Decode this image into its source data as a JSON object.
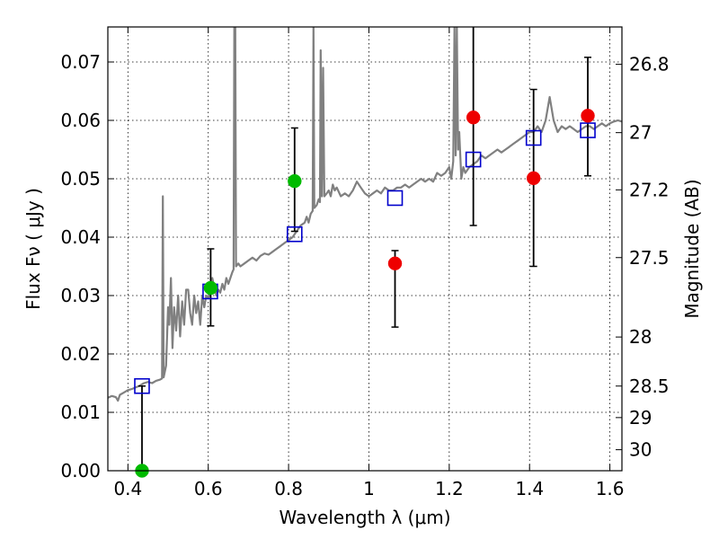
{
  "chart_data": {
    "type": "scatter",
    "title": "",
    "xlabel": "Wavelength  λ (μm)",
    "ylabel": "Flux  Fν  ( μJy )",
    "ylabel_right": "Magnitude (AB)",
    "xlim": [
      0.35,
      1.63
    ],
    "ylim": [
      0.0,
      0.076
    ],
    "grid": true,
    "x_ticks": [
      0.4,
      0.6,
      0.8,
      1.0,
      1.2,
      1.4,
      1.6
    ],
    "x_tick_labels": [
      "0.4",
      "0.6",
      "0.8",
      "1",
      "1.2",
      "1.4",
      "1.6"
    ],
    "y_ticks": [
      0.0,
      0.01,
      0.02,
      0.03,
      0.04,
      0.05,
      0.06,
      0.07
    ],
    "y_tick_labels": [
      "0.00",
      "0.01",
      "0.02",
      "0.03",
      "0.04",
      "0.05",
      "0.06",
      "0.07"
    ],
    "right_ticks": [
      {
        "label": "26.8",
        "flux": 0.0696
      },
      {
        "label": "27",
        "flux": 0.0579
      },
      {
        "label": "27.2",
        "flux": 0.0481
      },
      {
        "label": "27.5",
        "flux": 0.0365
      },
      {
        "label": "28",
        "flux": 0.0229
      },
      {
        "label": "28.5",
        "flux": 0.0145
      },
      {
        "label": "29",
        "flux": 0.0091
      },
      {
        "label": "30",
        "flux": 0.0036
      }
    ],
    "series": [
      {
        "type": "line",
        "color": "#808080",
        "points": [
          [
            0.35,
            0.0125
          ],
          [
            0.36,
            0.0128
          ],
          [
            0.37,
            0.0126
          ],
          [
            0.375,
            0.012
          ],
          [
            0.38,
            0.013
          ],
          [
            0.39,
            0.0134
          ],
          [
            0.4,
            0.0138
          ],
          [
            0.41,
            0.014
          ],
          [
            0.42,
            0.0143
          ],
          [
            0.43,
            0.0146
          ],
          [
            0.44,
            0.015
          ],
          [
            0.45,
            0.0152
          ],
          [
            0.46,
            0.015
          ],
          [
            0.47,
            0.0154
          ],
          [
            0.48,
            0.0156
          ],
          [
            0.485,
            0.0158
          ],
          [
            0.487,
            0.047
          ],
          [
            0.489,
            0.016
          ],
          [
            0.495,
            0.018
          ],
          [
            0.5,
            0.028
          ],
          [
            0.503,
            0.025
          ],
          [
            0.507,
            0.033
          ],
          [
            0.511,
            0.021
          ],
          [
            0.515,
            0.028
          ],
          [
            0.52,
            0.024
          ],
          [
            0.525,
            0.03
          ],
          [
            0.53,
            0.023
          ],
          [
            0.535,
            0.029
          ],
          [
            0.54,
            0.025
          ],
          [
            0.545,
            0.031
          ],
          [
            0.55,
            0.031
          ],
          [
            0.555,
            0.027
          ],
          [
            0.56,
            0.025
          ],
          [
            0.565,
            0.03
          ],
          [
            0.57,
            0.027
          ],
          [
            0.575,
            0.029
          ],
          [
            0.58,
            0.025
          ],
          [
            0.585,
            0.03
          ],
          [
            0.59,
            0.028
          ],
          [
            0.595,
            0.03
          ],
          [
            0.6,
            0.0295
          ],
          [
            0.605,
            0.031
          ],
          [
            0.61,
            0.033
          ],
          [
            0.615,
            0.0315
          ],
          [
            0.62,
            0.03
          ],
          [
            0.625,
            0.031
          ],
          [
            0.63,
            0.0305
          ],
          [
            0.635,
            0.032
          ],
          [
            0.64,
            0.031
          ],
          [
            0.645,
            0.033
          ],
          [
            0.65,
            0.032
          ],
          [
            0.655,
            0.033
          ],
          [
            0.66,
            0.034
          ],
          [
            0.663,
            0.0345
          ],
          [
            0.665,
            0.08
          ],
          [
            0.667,
            0.08
          ],
          [
            0.669,
            0.035
          ],
          [
            0.675,
            0.0355
          ],
          [
            0.68,
            0.035
          ],
          [
            0.69,
            0.0355
          ],
          [
            0.7,
            0.036
          ],
          [
            0.71,
            0.0365
          ],
          [
            0.72,
            0.036
          ],
          [
            0.73,
            0.0368
          ],
          [
            0.74,
            0.0372
          ],
          [
            0.75,
            0.037
          ],
          [
            0.76,
            0.0375
          ],
          [
            0.77,
            0.038
          ],
          [
            0.78,
            0.0385
          ],
          [
            0.79,
            0.039
          ],
          [
            0.8,
            0.0395
          ],
          [
            0.81,
            0.04
          ],
          [
            0.82,
            0.041
          ],
          [
            0.83,
            0.042
          ],
          [
            0.84,
            0.0425
          ],
          [
            0.845,
            0.0435
          ],
          [
            0.85,
            0.0425
          ],
          [
            0.855,
            0.044
          ],
          [
            0.86,
            0.0445
          ],
          [
            0.862,
            0.076
          ],
          [
            0.864,
            0.045
          ],
          [
            0.87,
            0.0455
          ],
          [
            0.875,
            0.0465
          ],
          [
            0.878,
            0.046
          ],
          [
            0.88,
            0.072
          ],
          [
            0.883,
            0.047
          ],
          [
            0.886,
            0.069
          ],
          [
            0.889,
            0.047
          ],
          [
            0.895,
            0.0475
          ],
          [
            0.9,
            0.048
          ],
          [
            0.905,
            0.047
          ],
          [
            0.91,
            0.049
          ],
          [
            0.915,
            0.048
          ],
          [
            0.92,
            0.0485
          ],
          [
            0.93,
            0.047
          ],
          [
            0.94,
            0.0475
          ],
          [
            0.95,
            0.047
          ],
          [
            0.96,
            0.048
          ],
          [
            0.97,
            0.0495
          ],
          [
            0.98,
            0.0485
          ],
          [
            0.99,
            0.0475
          ],
          [
            1.0,
            0.047
          ],
          [
            1.01,
            0.0475
          ],
          [
            1.02,
            0.048
          ],
          [
            1.03,
            0.0475
          ],
          [
            1.04,
            0.0485
          ],
          [
            1.05,
            0.048
          ],
          [
            1.06,
            0.048
          ],
          [
            1.07,
            0.0485
          ],
          [
            1.08,
            0.0485
          ],
          [
            1.09,
            0.049
          ],
          [
            1.1,
            0.0485
          ],
          [
            1.11,
            0.049
          ],
          [
            1.12,
            0.0495
          ],
          [
            1.13,
            0.05
          ],
          [
            1.14,
            0.0495
          ],
          [
            1.15,
            0.05
          ],
          [
            1.16,
            0.0495
          ],
          [
            1.17,
            0.051
          ],
          [
            1.18,
            0.0505
          ],
          [
            1.19,
            0.051
          ],
          [
            1.2,
            0.052
          ],
          [
            1.205,
            0.05
          ],
          [
            1.21,
            0.053
          ],
          [
            1.213,
            0.076
          ],
          [
            1.216,
            0.054
          ],
          [
            1.219,
            0.076
          ],
          [
            1.222,
            0.055
          ],
          [
            1.225,
            0.058
          ],
          [
            1.23,
            0.05
          ],
          [
            1.235,
            0.052
          ],
          [
            1.24,
            0.051
          ],
          [
            1.25,
            0.052
          ],
          [
            1.26,
            0.0525
          ],
          [
            1.27,
            0.053
          ],
          [
            1.28,
            0.054
          ],
          [
            1.29,
            0.0535
          ],
          [
            1.3,
            0.054
          ],
          [
            1.31,
            0.0545
          ],
          [
            1.32,
            0.055
          ],
          [
            1.33,
            0.0545
          ],
          [
            1.34,
            0.055
          ],
          [
            1.35,
            0.0555
          ],
          [
            1.36,
            0.056
          ],
          [
            1.37,
            0.0565
          ],
          [
            1.38,
            0.057
          ],
          [
            1.39,
            0.0575
          ],
          [
            1.4,
            0.058
          ],
          [
            1.41,
            0.058
          ],
          [
            1.42,
            0.059
          ],
          [
            1.43,
            0.058
          ],
          [
            1.44,
            0.06
          ],
          [
            1.45,
            0.064
          ],
          [
            1.46,
            0.06
          ],
          [
            1.47,
            0.058
          ],
          [
            1.48,
            0.059
          ],
          [
            1.49,
            0.0585
          ],
          [
            1.5,
            0.059
          ],
          [
            1.51,
            0.0585
          ],
          [
            1.52,
            0.058
          ],
          [
            1.53,
            0.0585
          ],
          [
            1.54,
            0.059
          ],
          [
            1.55,
            0.059
          ],
          [
            1.56,
            0.0585
          ],
          [
            1.57,
            0.059
          ],
          [
            1.58,
            0.0595
          ],
          [
            1.59,
            0.059
          ],
          [
            1.6,
            0.0595
          ],
          [
            1.61,
            0.0598
          ],
          [
            1.62,
            0.06
          ],
          [
            1.63,
            0.0598
          ]
        ]
      },
      {
        "type": "scatter",
        "marker": "open-square",
        "color": "#0000cc",
        "x": [
          0.435,
          0.605,
          0.815,
          1.065,
          1.26,
          1.41,
          1.545
        ],
        "y": [
          0.0145,
          0.0307,
          0.0405,
          0.0467,
          0.0533,
          0.057,
          0.0583
        ]
      },
      {
        "type": "scatter",
        "marker": "filled-circle",
        "color": "#00bb00",
        "x": [
          0.435,
          0.606,
          0.815
        ],
        "y": [
          0.0,
          0.0313,
          0.0496
        ],
        "yerr_low": [
          0.0,
          0.0065,
          0.0086
        ],
        "yerr_high": [
          0.0145,
          0.0067,
          0.0091
        ]
      },
      {
        "type": "scatter",
        "marker": "filled-circle",
        "color": "#ee0000",
        "x": [
          1.065,
          1.26,
          1.41,
          1.545
        ],
        "y": [
          0.0355,
          0.0605,
          0.0501,
          0.0608
        ],
        "yerr_low": [
          0.0109,
          0.0185,
          0.0151,
          0.0103
        ],
        "yerr_high": [
          0.0022,
          0.0165,
          0.0152,
          0.01
        ]
      }
    ]
  }
}
